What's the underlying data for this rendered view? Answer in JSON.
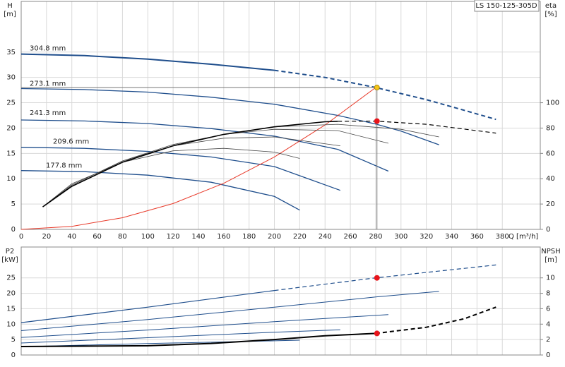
{
  "chart_data": [
    {
      "type": "line",
      "title": "LS 150-125-305D",
      "ylabel": [
        "H",
        "[m]"
      ],
      "y2label": [
        "eta",
        "[%]"
      ],
      "xlabel": "Q [m³/h]",
      "xlim": [
        0,
        410
      ],
      "xticks": [
        0,
        20,
        40,
        60,
        80,
        100,
        120,
        140,
        160,
        180,
        200,
        220,
        240,
        260,
        280,
        300,
        320,
        340,
        360,
        380
      ],
      "ylim": [
        0,
        45
      ],
      "yticks": [
        0,
        5,
        10,
        15,
        20,
        25,
        30,
        35
      ],
      "y2lim": [
        0,
        180
      ],
      "y2ticks": [
        0,
        20,
        40,
        60,
        80,
        100
      ],
      "grid": true,
      "show_xtick_labels": true,
      "series": [
        {
          "name": "304.8 mm",
          "color": "#1f4e8c",
          "width": 2,
          "dash": false,
          "x": [
            0,
            50,
            100,
            150,
            200
          ],
          "values": [
            34.6,
            34.3,
            33.6,
            32.6,
            31.4
          ]
        },
        {
          "color": "#1f4e8c",
          "width": 2,
          "dash": true,
          "x": [
            200,
            240,
            280,
            320,
            350,
            375
          ],
          "values": [
            31.4,
            30,
            28,
            25.6,
            23.5,
            21.7
          ]
        },
        {
          "name": "273.1 mm",
          "color": "#1f4e8c",
          "width": 1.3,
          "dash": false,
          "x": [
            0,
            50,
            100,
            150,
            200,
            250,
            280,
            300,
            330
          ],
          "values": [
            27.8,
            27.6,
            27.1,
            26.1,
            24.7,
            22.5,
            20.8,
            19.4,
            16.7
          ]
        },
        {
          "name": "241.3 mm",
          "color": "#1f4e8c",
          "width": 1.3,
          "dash": false,
          "x": [
            0,
            50,
            100,
            150,
            200,
            250,
            290
          ],
          "values": [
            21.6,
            21.4,
            20.9,
            19.9,
            18.4,
            15.8,
            11.5
          ]
        },
        {
          "name": "209.6 mm",
          "color": "#1f4e8c",
          "width": 1.3,
          "dash": false,
          "x": [
            0,
            50,
            100,
            150,
            200,
            252
          ],
          "values": [
            16.2,
            16,
            15.4,
            14.3,
            12.4,
            7.7
          ]
        },
        {
          "name": "177.8 mm",
          "color": "#1f4e8c",
          "width": 1.3,
          "dash": false,
          "x": [
            0,
            50,
            100,
            150,
            200,
            220
          ],
          "values": [
            11.6,
            11.4,
            10.7,
            9.3,
            6.5,
            3.8
          ]
        },
        {
          "color": "#e83a2a",
          "width": 1,
          "dash": false,
          "x": [
            0,
            40,
            80,
            120,
            160,
            200,
            240,
            280
          ],
          "values": [
            0,
            0.6,
            2.3,
            5.1,
            9.1,
            14.3,
            20.6,
            28
          ]
        },
        {
          "color": "#444444",
          "width": 0.8,
          "dash": false,
          "axis": "y2",
          "x": [
            17,
            40,
            80,
            120,
            160,
            200,
            220
          ],
          "values": [
            17.8,
            36,
            53,
            62,
            64,
            61,
            56
          ]
        },
        {
          "color": "#444444",
          "width": 0.8,
          "dash": false,
          "axis": "y2",
          "x": [
            17,
            40,
            80,
            120,
            160,
            200,
            252
          ],
          "values": [
            17.8,
            35,
            54,
            66,
            72,
            73,
            66
          ]
        },
        {
          "color": "#444444",
          "width": 0.8,
          "dash": false,
          "axis": "y2",
          "x": [
            17,
            40,
            80,
            120,
            160,
            200,
            250,
            290
          ],
          "values": [
            17.8,
            35,
            54,
            67,
            75,
            79,
            78,
            68
          ]
        },
        {
          "color": "#444444",
          "width": 0.8,
          "dash": false,
          "axis": "y2",
          "x": [
            17,
            40,
            80,
            120,
            160,
            200,
            250,
            300,
            330
          ],
          "values": [
            17.8,
            34,
            53,
            66,
            75,
            81,
            83,
            79,
            73
          ]
        },
        {
          "color": "#000000",
          "width": 1.6,
          "dash": false,
          "axis": "y2",
          "x": [
            17,
            40,
            80,
            120,
            160,
            200,
            240,
            250
          ],
          "values": [
            17.8,
            34,
            53,
            66,
            75,
            81,
            85,
            85.3
          ]
        },
        {
          "color": "#000000",
          "width": 1.2,
          "dash": true,
          "axis": "y2",
          "x": [
            250,
            280,
            320,
            375
          ],
          "values": [
            85.3,
            85.5,
            83,
            76
          ]
        }
      ],
      "points": [
        {
          "x": 281,
          "y": 28,
          "color": "#f5c518"
        },
        {
          "x": 281,
          "y": 85.5,
          "axis": "y2",
          "color": "#e8141a"
        }
      ]
    },
    {
      "type": "line",
      "ylabel": [
        "P2",
        "[kW]"
      ],
      "y2label": [
        "NPSH",
        "[m]"
      ],
      "xlim": [
        0,
        410
      ],
      "xticks": [
        0,
        20,
        40,
        60,
        80,
        100,
        120,
        140,
        160,
        180,
        200,
        220,
        240,
        260,
        280,
        300,
        320,
        340,
        360,
        380
      ],
      "ylim": [
        0,
        35
      ],
      "yticks": [
        0,
        5,
        10,
        15,
        20,
        25
      ],
      "y2lim": [
        0,
        14
      ],
      "y2ticks": [
        0,
        2,
        4,
        6,
        8,
        10
      ],
      "grid": true,
      "show_xtick_labels": false,
      "series": [
        {
          "color": "#1f4e8c",
          "width": 1.2,
          "dash": false,
          "x": [
            0,
            100,
            200
          ],
          "values": [
            10.5,
            15.5,
            20.9
          ]
        },
        {
          "color": "#1f4e8c",
          "width": 1.2,
          "dash": true,
          "x": [
            200,
            280,
            375
          ],
          "values": [
            20.9,
            25,
            29.2
          ]
        },
        {
          "color": "#1f4e8c",
          "width": 1,
          "dash": false,
          "x": [
            0,
            100,
            200,
            280,
            330
          ],
          "values": [
            7.9,
            11.5,
            15.5,
            18.8,
            20.6
          ]
        },
        {
          "color": "#1f4e8c",
          "width": 1,
          "dash": false,
          "x": [
            0,
            100,
            200,
            290
          ],
          "values": [
            5.7,
            8.1,
            10.8,
            13.1
          ]
        },
        {
          "color": "#1f4e8c",
          "width": 1,
          "dash": false,
          "x": [
            0,
            100,
            200,
            252
          ],
          "values": [
            3.9,
            5.6,
            7.4,
            8.2
          ]
        },
        {
          "color": "#1f4e8c",
          "width": 1,
          "dash": false,
          "x": [
            0,
            100,
            200,
            220
          ],
          "values": [
            2.7,
            3.7,
            4.6,
            4.8
          ]
        },
        {
          "color": "#000000",
          "width": 2,
          "dash": false,
          "axis": "y2",
          "x": [
            0,
            100,
            150,
            200,
            240,
            280
          ],
          "values": [
            1.1,
            1.2,
            1.5,
            2.0,
            2.5,
            2.8
          ]
        },
        {
          "color": "#000000",
          "width": 2,
          "dash": true,
          "axis": "y2",
          "x": [
            280,
            320,
            350,
            375
          ],
          "values": [
            2.8,
            3.6,
            4.7,
            6.2
          ]
        }
      ],
      "points": [
        {
          "x": 281,
          "y": 25,
          "color": "#e8141a"
        },
        {
          "x": 281,
          "y": 2.8,
          "axis": "y2",
          "color": "#e8141a"
        }
      ]
    }
  ]
}
